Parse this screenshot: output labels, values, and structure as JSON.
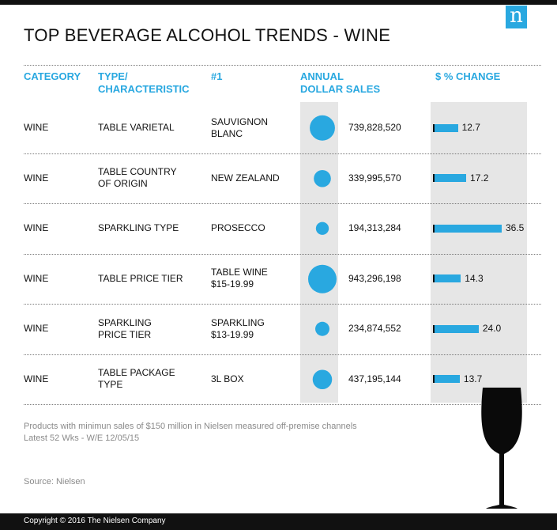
{
  "title": "TOP BEVERAGE ALCOHOL TRENDS - WINE",
  "logo_letter": "n",
  "headers": {
    "category": "CATEGORY",
    "type": "TYPE/\nCHARACTERISTIC",
    "top": "#1",
    "sales": "ANNUAL\nDOLLAR SALES",
    "change": "$ % CHANGE"
  },
  "colors": {
    "accent": "#29a8e0",
    "shade": "#e6e6e6",
    "dark": "#111111"
  },
  "chart_data": {
    "type": "table",
    "rows": [
      {
        "category": "WINE",
        "type": "TABLE VARIETAL",
        "top": "SAUVIGNON\nBLANC",
        "sales": 739828520,
        "sales_label": "739,828,520",
        "change": 12.7,
        "change_label": "12.7"
      },
      {
        "category": "WINE",
        "type": "TABLE COUNTRY\nOF ORIGIN",
        "top": "NEW ZEALAND",
        "sales": 339995570,
        "sales_label": "339,995,570",
        "change": 17.2,
        "change_label": "17.2"
      },
      {
        "category": "WINE",
        "type": "SPARKLING TYPE",
        "top": "PROSECCO",
        "sales": 194313284,
        "sales_label": "194,313,284",
        "change": 36.5,
        "change_label": "36.5"
      },
      {
        "category": "WINE",
        "type": "TABLE PRICE TIER",
        "top": "TABLE WINE\n$15-19.99",
        "sales": 943296198,
        "sales_label": "943,296,198",
        "change": 14.3,
        "change_label": "14.3"
      },
      {
        "category": "WINE",
        "type": "SPARKLING\nPRICE TIER",
        "top": "SPARKLING\n$13-19.99",
        "sales": 234874552,
        "sales_label": "234,874,552",
        "change": 24.0,
        "change_label": "24.0"
      },
      {
        "category": "WINE",
        "type": "TABLE PACKAGE\nTYPE",
        "top": "3L BOX",
        "sales": 437195144,
        "sales_label": "437,195,144",
        "change": 13.7,
        "change_label": "13.7"
      }
    ]
  },
  "footnote": "Products with minimun sales of $150 million in Nielsen measured off-premise channels\nLatest 52 Wks - W/E 12/05/15",
  "source": "Source: Nielsen",
  "copyright": "Copyright © 2016 The Nielsen Company"
}
